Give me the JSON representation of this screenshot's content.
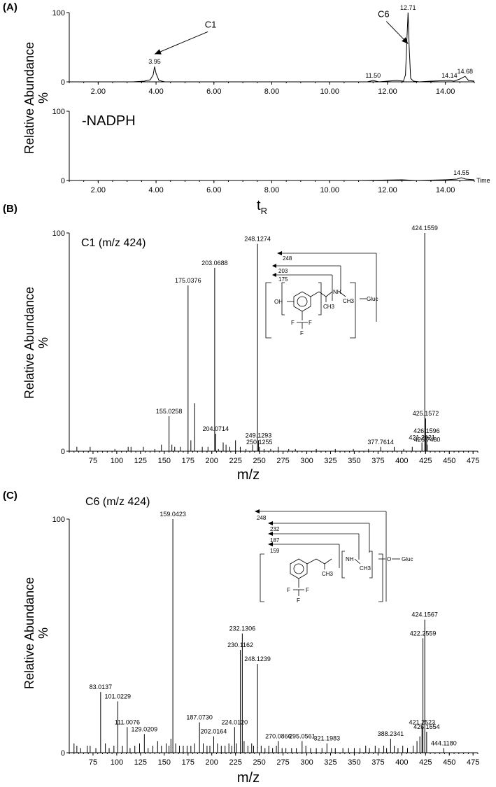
{
  "panel_labels": {
    "a": "(A)",
    "b": "(B)",
    "c": "(C)"
  },
  "chart_data": [
    {
      "type": "line",
      "id": "A1",
      "xlim": [
        1.0,
        15.0
      ],
      "ylim": [
        0,
        100
      ],
      "y_ticks": [
        "100",
        "0"
      ],
      "x_ticks": [
        "2.00",
        "4.00",
        "6.00",
        "8.00",
        "10.00",
        "12.00",
        "14.00"
      ],
      "x_tick_values": [
        2,
        4,
        6,
        8,
        10,
        12,
        14
      ],
      "ylabel": "Relative Abundance",
      "ylabel_unit": "%",
      "trace": [
        [
          1.0,
          0
        ],
        [
          3.2,
          0
        ],
        [
          3.6,
          1
        ],
        [
          3.8,
          3
        ],
        [
          3.9,
          10
        ],
        [
          3.95,
          22
        ],
        [
          4.0,
          12
        ],
        [
          4.1,
          2
        ],
        [
          4.3,
          0
        ],
        [
          11.3,
          0
        ],
        [
          11.5,
          2
        ],
        [
          11.7,
          0
        ],
        [
          12.3,
          2
        ],
        [
          12.55,
          1
        ],
        [
          12.62,
          10
        ],
        [
          12.67,
          60
        ],
        [
          12.71,
          100
        ],
        [
          12.75,
          50
        ],
        [
          12.8,
          5
        ],
        [
          12.9,
          1
        ],
        [
          13.1,
          0
        ],
        [
          13.5,
          1
        ],
        [
          14.14,
          2
        ],
        [
          14.3,
          1
        ],
        [
          14.5,
          4
        ],
        [
          14.68,
          8
        ],
        [
          14.8,
          2
        ],
        [
          15.0,
          1
        ]
      ],
      "peaks": [
        {
          "x": 3.95,
          "y": 22,
          "label": "3.95"
        },
        {
          "x": 11.5,
          "y": 2,
          "label": "11.50"
        },
        {
          "x": 12.71,
          "y": 100,
          "label": "12.71"
        },
        {
          "x": 14.14,
          "y": 2,
          "label": "14.14"
        },
        {
          "x": 14.68,
          "y": 8,
          "label": "14.68"
        }
      ],
      "annotations": [
        {
          "label": "C1",
          "target_x": 3.95,
          "target_y": 40
        },
        {
          "label": "C6",
          "target_x": 12.71,
          "target_y": 55
        }
      ]
    },
    {
      "type": "line",
      "id": "A2",
      "title": "-NADPH",
      "xlim": [
        1.0,
        15.0
      ],
      "ylim": [
        0,
        100
      ],
      "y_ticks": [
        "100",
        "0"
      ],
      "x_ticks": [
        "2.00",
        "4.00",
        "6.00",
        "8.00",
        "10.00",
        "12.00",
        "14.00"
      ],
      "x_tick_values": [
        2,
        4,
        6,
        8,
        10,
        12,
        14
      ],
      "xlabel": "t",
      "xlabel_sub": "R",
      "x_axis_end_label": "Time",
      "trace": [
        [
          1.0,
          0
        ],
        [
          11.0,
          0
        ],
        [
          12.5,
          1
        ],
        [
          13.0,
          0
        ],
        [
          14.0,
          1
        ],
        [
          14.4,
          2
        ],
        [
          14.55,
          4
        ],
        [
          14.7,
          2
        ],
        [
          15.0,
          1
        ]
      ],
      "peaks": [
        {
          "x": 14.55,
          "y": 4,
          "label": "14.55"
        }
      ]
    },
    {
      "type": "bar",
      "id": "B",
      "title": "C1 (m/z 424)",
      "xlim": [
        50,
        480
      ],
      "ylim": [
        0,
        100
      ],
      "y_ticks": [
        "100",
        "0"
      ],
      "x_ticks": [
        "75",
        "100",
        "125",
        "150",
        "175",
        "200",
        "225",
        "250",
        "275",
        "300",
        "325",
        "350",
        "375",
        "400",
        "425",
        "450",
        "475"
      ],
      "x_tick_values": [
        75,
        100,
        125,
        150,
        175,
        200,
        225,
        250,
        275,
        300,
        325,
        350,
        375,
        400,
        425,
        450,
        475
      ],
      "xlabel": "m/z",
      "ylabel": "Relative Abundance",
      "ylabel_unit": "%",
      "peaks": [
        {
          "x": 155.0258,
          "y": 16,
          "label": "155.0258"
        },
        {
          "x": 175.0376,
          "y": 76,
          "label": "175.0376"
        },
        {
          "x": 182.0,
          "y": 22,
          "label": ""
        },
        {
          "x": 203.0688,
          "y": 84,
          "label": "203.0688"
        },
        {
          "x": 204.0714,
          "y": 8,
          "label": "204.0714"
        },
        {
          "x": 248.1274,
          "y": 95,
          "label": "248.1274"
        },
        {
          "x": 249.1293,
          "y": 5,
          "label": "249.1293"
        },
        {
          "x": 250.1255,
          "y": 2,
          "label": "250.1255"
        },
        {
          "x": 377.7614,
          "y": 2,
          "label": "377.7614"
        },
        {
          "x": 421.2021,
          "y": 4,
          "label": "421.2021"
        },
        {
          "x": 424.1559,
          "y": 100,
          "label": "424.1559"
        },
        {
          "x": 425.1572,
          "y": 15,
          "label": "425.1572"
        },
        {
          "x": 426.1596,
          "y": 7,
          "label": "426.1596"
        },
        {
          "x": 426.748,
          "y": 3,
          "label": "426.7480"
        }
      ],
      "minor_peaks": [
        [
          58,
          2
        ],
        [
          72,
          2
        ],
        [
          98,
          1
        ],
        [
          112,
          2
        ],
        [
          115,
          2
        ],
        [
          128,
          2
        ],
        [
          140,
          1
        ],
        [
          147,
          3
        ],
        [
          158,
          3
        ],
        [
          161,
          2
        ],
        [
          167,
          2
        ],
        [
          178,
          5
        ],
        [
          190,
          2
        ],
        [
          196,
          2
        ],
        [
          207,
          1
        ],
        [
          212,
          4
        ],
        [
          215,
          3
        ],
        [
          219,
          2
        ],
        [
          225,
          5
        ],
        [
          230,
          2
        ],
        [
          236,
          1
        ],
        [
          243,
          3
        ],
        [
          255,
          1
        ],
        [
          262,
          1
        ],
        [
          270,
          2
        ],
        [
          281,
          1
        ],
        [
          288,
          1
        ],
        [
          310,
          1
        ],
        [
          330,
          1
        ],
        [
          349,
          1
        ],
        [
          365,
          1
        ],
        [
          392,
          2
        ],
        [
          402,
          1
        ],
        [
          411,
          2
        ]
      ]
    },
    {
      "type": "bar",
      "id": "C",
      "title": "C6 (m/z 424)",
      "xlim": [
        50,
        480
      ],
      "ylim": [
        0,
        100
      ],
      "y_ticks": [
        "100",
        "0"
      ],
      "x_ticks": [
        "75",
        "100",
        "125",
        "150",
        "175",
        "200",
        "225",
        "250",
        "275",
        "300",
        "325",
        "350",
        "375",
        "400",
        "425",
        "450",
        "475"
      ],
      "x_tick_values": [
        75,
        100,
        125,
        150,
        175,
        200,
        225,
        250,
        275,
        300,
        325,
        350,
        375,
        400,
        425,
        450,
        475
      ],
      "xlabel": "m/z",
      "ylabel": "Relative Abundance",
      "ylabel_unit": "%",
      "peaks": [
        {
          "x": 83.0137,
          "y": 26,
          "label": "83.0137"
        },
        {
          "x": 101.0229,
          "y": 22,
          "label": "101.0229"
        },
        {
          "x": 111.0076,
          "y": 11,
          "label": "111.0076"
        },
        {
          "x": 129.0209,
          "y": 8,
          "label": "129.0209"
        },
        {
          "x": 159.0423,
          "y": 100,
          "label": "159.0423"
        },
        {
          "x": 187.073,
          "y": 13,
          "label": "187.0730"
        },
        {
          "x": 202.0164,
          "y": 7,
          "label": "202.0164"
        },
        {
          "x": 224.012,
          "y": 11,
          "label": "224.0120"
        },
        {
          "x": 230.1162,
          "y": 44,
          "label": "230.1162"
        },
        {
          "x": 232.1306,
          "y": 51,
          "label": "232.1306"
        },
        {
          "x": 248.1239,
          "y": 38,
          "label": "248.1239"
        },
        {
          "x": 270.0866,
          "y": 5,
          "label": "270.0866"
        },
        {
          "x": 295.0561,
          "y": 5,
          "label": "295.0561"
        },
        {
          "x": 321.1983,
          "y": 4,
          "label": "321.1983"
        },
        {
          "x": 388.2341,
          "y": 6,
          "label": "388.2341"
        },
        {
          "x": 421.2523,
          "y": 11,
          "label": "421.2523"
        },
        {
          "x": 422.2559,
          "y": 49,
          "label": "422.2559"
        },
        {
          "x": 424.1567,
          "y": 57,
          "label": "424.1567"
        },
        {
          "x": 426.1654,
          "y": 9,
          "label": "426.1654"
        },
        {
          "x": 444.118,
          "y": 2,
          "label": "444.1180"
        }
      ],
      "minor_peaks": [
        [
          55,
          4
        ],
        [
          58,
          3
        ],
        [
          62,
          2
        ],
        [
          69,
          3
        ],
        [
          72,
          3
        ],
        [
          78,
          2
        ],
        [
          88,
          4
        ],
        [
          92,
          2
        ],
        [
          97,
          3
        ],
        [
          106,
          3
        ],
        [
          114,
          2
        ],
        [
          119,
          3
        ],
        [
          124,
          4
        ],
        [
          133,
          2
        ],
        [
          138,
          3
        ],
        [
          143,
          5
        ],
        [
          147,
          3
        ],
        [
          152,
          4
        ],
        [
          155,
          3
        ],
        [
          157,
          6
        ],
        [
          162,
          4
        ],
        [
          166,
          3
        ],
        [
          170,
          3
        ],
        [
          174,
          3
        ],
        [
          178,
          3
        ],
        [
          182,
          4
        ],
        [
          191,
          4
        ],
        [
          195,
          3
        ],
        [
          198,
          3
        ],
        [
          206,
          4
        ],
        [
          210,
          3
        ],
        [
          214,
          3
        ],
        [
          218,
          4
        ],
        [
          221,
          3
        ],
        [
          226,
          4
        ],
        [
          234,
          5
        ],
        [
          238,
          3
        ],
        [
          242,
          4
        ],
        [
          244,
          3
        ],
        [
          252,
          3
        ],
        [
          256,
          2
        ],
        [
          260,
          3
        ],
        [
          264,
          2
        ],
        [
          268,
          3
        ],
        [
          274,
          2
        ],
        [
          278,
          2
        ],
        [
          284,
          2
        ],
        [
          289,
          2
        ],
        [
          299,
          3
        ],
        [
          304,
          2
        ],
        [
          310,
          2
        ],
        [
          316,
          2
        ],
        [
          326,
          2
        ],
        [
          330,
          2
        ],
        [
          338,
          2
        ],
        [
          344,
          2
        ],
        [
          350,
          2
        ],
        [
          356,
          2
        ],
        [
          362,
          3
        ],
        [
          366,
          2
        ],
        [
          372,
          3
        ],
        [
          376,
          2
        ],
        [
          381,
          3
        ],
        [
          384,
          2
        ],
        [
          392,
          3
        ],
        [
          396,
          2
        ],
        [
          401,
          3
        ],
        [
          406,
          2
        ],
        [
          412,
          3
        ],
        [
          416,
          5
        ],
        [
          419,
          7
        ]
      ]
    }
  ],
  "structures": {
    "B": {
      "fragments": [
        "248",
        "203",
        "175"
      ],
      "atoms": [
        "OH",
        "NH",
        "CH3",
        "CH3",
        "Gluc",
        "F",
        "F",
        "F"
      ]
    },
    "C": {
      "fragments": [
        "248",
        "232",
        "187",
        "159"
      ],
      "atoms": [
        "NH",
        "O",
        "Gluc",
        "CH3",
        "CH3",
        "F",
        "F",
        "F"
      ]
    }
  }
}
